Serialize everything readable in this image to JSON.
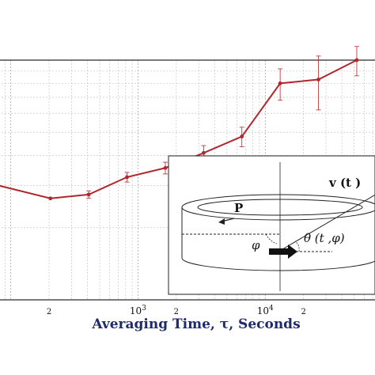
{
  "chart_data": {
    "type": "line",
    "xscale": "log",
    "xlim": [
      80,
      75000
    ],
    "yscale": "log",
    "ylim": [
      0.1,
      1.0
    ],
    "xlabel": "Averaging Time, τ, Seconds",
    "ylabel": "",
    "grid": true,
    "x_tick_labels": [
      {
        "value": 200,
        "label": "2"
      },
      {
        "value": 1000,
        "label": "10",
        "exp": "3"
      },
      {
        "value": 2000,
        "label": "2"
      },
      {
        "value": 10000,
        "label": "10",
        "exp": "4"
      },
      {
        "value": 20000,
        "label": "2"
      }
    ],
    "color": "#b0272e",
    "series": [
      {
        "x": [
          80,
          205,
          410,
          820,
          1640,
          3280,
          6550,
          13100,
          26200,
          52400
        ],
        "y": [
          0.3,
          0.265,
          0.275,
          0.325,
          0.355,
          0.41,
          0.48,
          0.8,
          0.83,
          1.0
        ],
        "err": [
          0,
          0,
          0.01,
          0.015,
          0.02,
          0.03,
          0.045,
          0.12,
          0.21,
          0.14
        ]
      }
    ]
  },
  "inset": {
    "velocity_label": "v (t )",
    "polarization_label": "P",
    "phi_label": "φ",
    "theta_label": "θ (t ,φ)"
  }
}
